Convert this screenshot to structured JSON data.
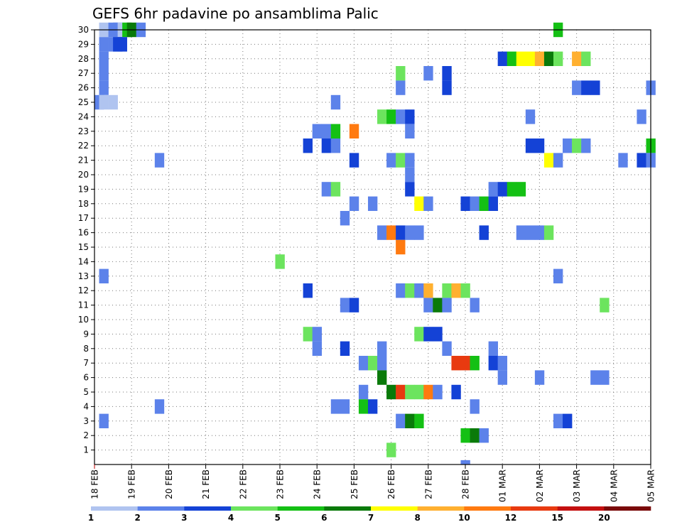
{
  "chart_data": {
    "type": "heatmap",
    "title": "GEFS 6hr padavine po ansamblima Palic",
    "xlabel": "",
    "ylabel": "",
    "x_ticks": [
      "18 FEB",
      "19 FEB",
      "20 FEB",
      "21 FEB",
      "22 FEB",
      "23 FEB",
      "24 FEB",
      "25 FEB",
      "26 FEB",
      "27 FEB",
      "28 FEB",
      "01 MAR",
      "02 MAR",
      "03 MAR",
      "04 MAR",
      "05 MAR"
    ],
    "y_ticks": [
      "1",
      "2",
      "3",
      "4",
      "5",
      "6",
      "7",
      "8",
      "9",
      "10",
      "11",
      "12",
      "13",
      "14",
      "15",
      "16",
      "17",
      "18",
      "19",
      "20",
      "21",
      "22",
      "23",
      "24",
      "25",
      "26",
      "27",
      "28",
      "29",
      "30"
    ],
    "xlim": [
      0,
      60
    ],
    "ylim": [
      0,
      30
    ],
    "x_step_hours": 6,
    "grid": true,
    "colorbar": {
      "levels": [
        1,
        2,
        3,
        4,
        5,
        6,
        7,
        8,
        10,
        12,
        15,
        20
      ],
      "colors": [
        "#b0c4f0",
        "#5c82ea",
        "#1442d6",
        "#6ce45e",
        "#14c014",
        "#0a7a0a",
        "#ffff00",
        "#ffb030",
        "#ff7a10",
        "#e83a10",
        "#c41010",
        "#7a0a0a"
      ],
      "labels": [
        "1",
        "2",
        "3",
        "4",
        "5",
        "6",
        "7",
        "8",
        "10",
        "12",
        "15",
        "20"
      ]
    },
    "cells": [
      [
        1,
        30,
        0
      ],
      [
        2,
        30,
        1
      ],
      [
        2.5,
        30,
        1
      ],
      [
        3,
        30,
        0
      ],
      [
        3.5,
        30,
        4
      ],
      [
        4,
        30,
        5
      ],
      [
        5,
        30,
        1
      ],
      [
        50,
        30,
        4
      ],
      [
        1,
        29,
        1
      ],
      [
        2,
        29,
        1
      ],
      [
        2.5,
        29,
        2
      ],
      [
        3,
        29,
        2
      ],
      [
        1,
        28,
        1
      ],
      [
        44,
        28,
        2
      ],
      [
        45,
        28,
        4
      ],
      [
        46,
        28,
        6
      ],
      [
        47,
        28,
        6
      ],
      [
        48,
        28,
        7
      ],
      [
        49,
        28,
        5
      ],
      [
        50,
        28,
        3
      ],
      [
        52,
        28,
        7
      ],
      [
        53,
        28,
        3
      ],
      [
        1,
        27,
        1
      ],
      [
        33,
        27,
        3
      ],
      [
        36,
        27,
        1
      ],
      [
        38,
        27,
        2
      ],
      [
        1,
        26,
        1
      ],
      [
        33,
        26,
        1
      ],
      [
        38,
        26,
        2
      ],
      [
        52,
        26,
        1
      ],
      [
        53,
        26,
        2
      ],
      [
        54,
        26,
        2
      ],
      [
        60,
        26,
        1
      ],
      [
        0.5,
        25,
        1
      ],
      [
        1,
        25,
        0
      ],
      [
        2,
        25,
        0
      ],
      [
        26,
        25,
        1
      ],
      [
        31,
        24,
        3
      ],
      [
        32,
        24,
        4
      ],
      [
        33,
        24,
        1
      ],
      [
        34,
        24,
        2
      ],
      [
        47,
        24,
        1
      ],
      [
        59,
        24,
        1
      ],
      [
        24,
        23,
        1
      ],
      [
        25,
        23,
        1
      ],
      [
        26,
        23,
        4
      ],
      [
        28,
        23,
        8
      ],
      [
        34,
        23,
        1
      ],
      [
        23,
        22,
        2
      ],
      [
        25,
        22,
        2
      ],
      [
        26,
        22,
        1
      ],
      [
        47,
        22,
        2
      ],
      [
        48,
        22,
        2
      ],
      [
        51,
        22,
        1
      ],
      [
        52,
        22,
        3
      ],
      [
        53,
        22,
        1
      ],
      [
        60,
        22,
        4
      ],
      [
        7,
        21,
        1
      ],
      [
        28,
        21,
        2
      ],
      [
        32,
        21,
        1
      ],
      [
        33,
        21,
        3
      ],
      [
        34,
        21,
        1
      ],
      [
        49,
        21,
        6
      ],
      [
        50,
        21,
        1
      ],
      [
        57,
        21,
        1
      ],
      [
        59,
        21,
        2
      ],
      [
        60,
        21,
        1
      ],
      [
        34,
        20,
        1
      ],
      [
        25,
        19,
        1
      ],
      [
        26,
        19,
        3
      ],
      [
        34,
        19,
        2
      ],
      [
        43,
        19,
        1
      ],
      [
        44,
        19,
        2
      ],
      [
        45,
        19,
        4
      ],
      [
        46,
        19,
        4
      ],
      [
        28,
        18,
        1
      ],
      [
        30,
        18,
        1
      ],
      [
        35,
        18,
        6
      ],
      [
        36,
        18,
        1
      ],
      [
        40,
        18,
        2
      ],
      [
        41,
        18,
        1
      ],
      [
        42,
        18,
        4
      ],
      [
        43,
        18,
        2
      ],
      [
        27,
        17,
        1
      ],
      [
        31,
        16,
        1
      ],
      [
        32,
        16,
        8
      ],
      [
        33,
        16,
        2
      ],
      [
        34,
        16,
        1
      ],
      [
        35,
        16,
        1
      ],
      [
        42,
        16,
        2
      ],
      [
        46,
        16,
        1
      ],
      [
        47,
        16,
        1
      ],
      [
        48,
        16,
        1
      ],
      [
        49,
        16,
        3
      ],
      [
        33,
        15,
        8
      ],
      [
        20,
        14,
        3
      ],
      [
        1,
        13,
        1
      ],
      [
        50,
        13,
        1
      ],
      [
        23,
        12,
        2
      ],
      [
        33,
        12,
        1
      ],
      [
        34,
        12,
        3
      ],
      [
        35,
        12,
        1
      ],
      [
        36,
        12,
        7
      ],
      [
        38,
        12,
        3
      ],
      [
        39,
        12,
        7
      ],
      [
        40,
        12,
        3
      ],
      [
        27,
        11,
        1
      ],
      [
        28,
        11,
        2
      ],
      [
        36,
        11,
        1
      ],
      [
        37,
        11,
        5
      ],
      [
        38,
        11,
        1
      ],
      [
        41,
        11,
        1
      ],
      [
        55,
        11,
        3
      ],
      [
        23,
        9,
        3
      ],
      [
        24,
        9,
        1
      ],
      [
        35,
        9,
        3
      ],
      [
        36,
        9,
        2
      ],
      [
        37,
        9,
        2
      ],
      [
        24,
        8,
        1
      ],
      [
        27,
        8,
        2
      ],
      [
        31,
        8,
        1
      ],
      [
        38,
        8,
        1
      ],
      [
        43,
        8,
        1
      ],
      [
        29,
        7,
        1
      ],
      [
        30,
        7,
        3
      ],
      [
        31,
        7,
        1
      ],
      [
        39,
        7,
        9
      ],
      [
        40,
        7,
        9
      ],
      [
        41,
        7,
        4
      ],
      [
        43,
        7,
        2
      ],
      [
        44,
        7,
        1
      ],
      [
        31,
        6,
        5
      ],
      [
        44,
        6,
        1
      ],
      [
        48,
        6,
        1
      ],
      [
        54,
        6,
        1
      ],
      [
        55,
        6,
        1
      ],
      [
        29,
        5,
        1
      ],
      [
        32,
        5,
        5
      ],
      [
        33,
        5,
        9
      ],
      [
        34,
        5,
        3
      ],
      [
        35,
        5,
        3
      ],
      [
        36,
        5,
        8
      ],
      [
        37,
        5,
        1
      ],
      [
        39,
        5,
        2
      ],
      [
        7,
        4,
        1
      ],
      [
        26,
        4,
        1
      ],
      [
        27,
        4,
        1
      ],
      [
        29,
        4,
        4
      ],
      [
        30,
        4,
        2
      ],
      [
        41,
        4,
        1
      ],
      [
        1,
        3,
        1
      ],
      [
        33,
        3,
        1
      ],
      [
        34,
        3,
        5
      ],
      [
        35,
        3,
        4
      ],
      [
        50,
        3,
        1
      ],
      [
        51,
        3,
        2
      ],
      [
        40,
        2,
        4
      ],
      [
        41,
        2,
        5
      ],
      [
        42,
        2,
        1
      ],
      [
        32,
        1,
        3
      ],
      [
        40,
        0,
        1
      ]
    ]
  }
}
